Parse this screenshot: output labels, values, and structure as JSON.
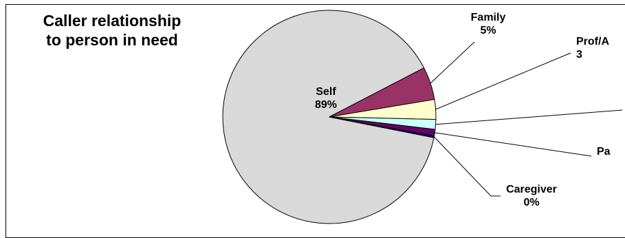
{
  "chart_data": {
    "type": "pie",
    "title": "Caller relationship\nto person in need",
    "slices": [
      {
        "label": "Self",
        "value_label": "89%",
        "value": 89.5,
        "color": "#d9d9d9"
      },
      {
        "label": "Family",
        "value_label": "5%",
        "value": 5,
        "color": "#993366"
      },
      {
        "label": "Prof/A",
        "value_label": "3",
        "value": 3,
        "color": "#ffffcc"
      },
      {
        "label": "",
        "value_label": "",
        "value": 1.5,
        "color": "#ccffff"
      },
      {
        "label": "Pa",
        "value_label": "",
        "value": 1,
        "color": "#660066"
      },
      {
        "label": "Caregiver",
        "value_label": "0%",
        "value": 0.25,
        "color": "#000080"
      }
    ]
  }
}
